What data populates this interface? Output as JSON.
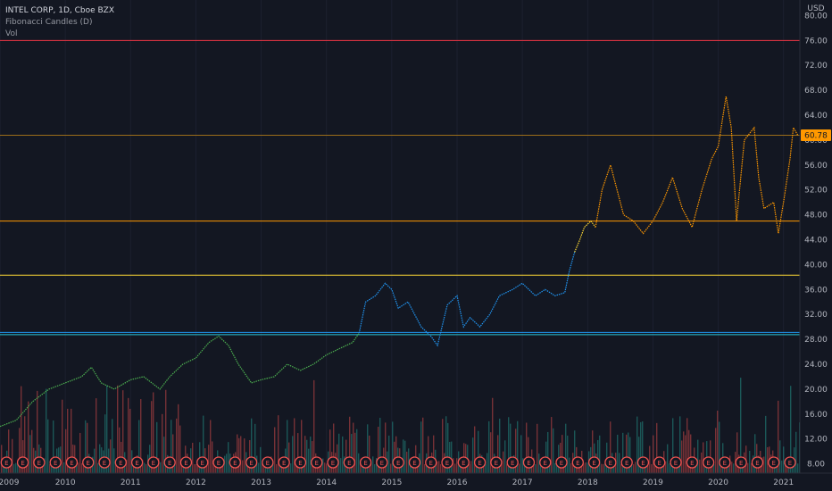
{
  "legend": {
    "symbol": "INTEL CORP, 1D, Cboe BZX",
    "indicator": "Fibonacci Candles (D)",
    "volume": "Vol"
  },
  "chart_data": {
    "type": "line",
    "currency": "USD",
    "y_ticks": [
      "80.00",
      "76.00",
      "72.00",
      "68.00",
      "64.00",
      "60.00",
      "56.00",
      "52.00",
      "48.00",
      "44.00",
      "40.00",
      "36.00",
      "32.00",
      "28.00",
      "24.00",
      "20.00",
      "16.00",
      "12.00",
      "8.00"
    ],
    "ylim": [
      6.5,
      82.5
    ],
    "last_price": "60.78",
    "x_ticks": [
      "2009",
      "2010",
      "2011",
      "2012",
      "2013",
      "2014",
      "2015",
      "2016",
      "2017",
      "2018",
      "2019",
      "2020",
      "2021"
    ],
    "xlim": [
      2009.0,
      2021.25
    ],
    "earnings_marker": "E",
    "earnings_markers": [
      2009.1,
      2009.35,
      2009.6,
      2009.85,
      2010.1,
      2010.35,
      2010.6,
      2010.85,
      2011.1,
      2011.35,
      2011.6,
      2011.85,
      2012.1,
      2012.35,
      2012.6,
      2012.85,
      2013.1,
      2013.35,
      2013.6,
      2013.85,
      2014.1,
      2014.35,
      2014.6,
      2014.85,
      2015.1,
      2015.35,
      2015.6,
      2015.85,
      2016.1,
      2016.35,
      2016.6,
      2016.85,
      2017.1,
      2017.35,
      2017.6,
      2017.85,
      2018.1,
      2018.35,
      2018.6,
      2018.85,
      2019.1,
      2019.35,
      2019.6,
      2019.85,
      2020.1,
      2020.35,
      2020.6,
      2020.85,
      2021.1
    ],
    "fib_levels": [
      {
        "price": 76.0,
        "color": "#f23645"
      },
      {
        "price": 60.78,
        "color": "#9c6e1a"
      },
      {
        "price": 47.0,
        "color": "#ff9800"
      },
      {
        "price": 38.3,
        "color": "#fdd835"
      },
      {
        "price": 29.1,
        "color": "#2196f3"
      },
      {
        "price": 28.75,
        "color": "#26c6da"
      }
    ],
    "series": [
      {
        "color": "#4caf50",
        "points": [
          [
            2009.0,
            14
          ],
          [
            2009.25,
            15
          ],
          [
            2009.5,
            18
          ],
          [
            2009.75,
            20
          ],
          [
            2010.0,
            21
          ],
          [
            2010.25,
            22
          ],
          [
            2010.4,
            23.5
          ],
          [
            2010.55,
            21
          ],
          [
            2010.75,
            20
          ],
          [
            2011.0,
            21.5
          ],
          [
            2011.2,
            22
          ],
          [
            2011.45,
            20
          ],
          [
            2011.6,
            22
          ],
          [
            2011.8,
            24
          ],
          [
            2012.0,
            25
          ],
          [
            2012.2,
            27.5
          ],
          [
            2012.35,
            28.5
          ],
          [
            2012.5,
            27
          ],
          [
            2012.65,
            24
          ],
          [
            2012.85,
            21
          ],
          [
            2013.0,
            21.5
          ],
          [
            2013.2,
            22
          ],
          [
            2013.4,
            24
          ],
          [
            2013.6,
            23
          ],
          [
            2013.8,
            24
          ],
          [
            2014.0,
            25.5
          ],
          [
            2014.2,
            26.5
          ],
          [
            2014.4,
            27.5
          ],
          [
            2014.5,
            29
          ]
        ]
      },
      {
        "color": "#2196f3",
        "points": [
          [
            2014.5,
            29
          ],
          [
            2014.6,
            34
          ],
          [
            2014.75,
            35
          ],
          [
            2014.9,
            37
          ],
          [
            2015.0,
            36
          ],
          [
            2015.1,
            33
          ],
          [
            2015.25,
            34
          ],
          [
            2015.45,
            30
          ],
          [
            2015.6,
            28.5
          ],
          [
            2015.7,
            27
          ],
          [
            2015.85,
            33.5
          ],
          [
            2016.0,
            35
          ],
          [
            2016.1,
            30
          ],
          [
            2016.2,
            31.5
          ],
          [
            2016.35,
            30
          ],
          [
            2016.5,
            32
          ],
          [
            2016.65,
            35
          ],
          [
            2016.85,
            36
          ],
          [
            2017.0,
            37
          ],
          [
            2017.2,
            35
          ],
          [
            2017.35,
            36
          ],
          [
            2017.5,
            35
          ],
          [
            2017.65,
            35.5
          ],
          [
            2017.72,
            39
          ],
          [
            2017.8,
            42
          ]
        ]
      },
      {
        "color": "#fdd835",
        "points": [
          [
            2017.8,
            42
          ],
          [
            2017.88,
            44
          ],
          [
            2017.95,
            46
          ],
          [
            2018.05,
            47
          ],
          [
            2018.12,
            46
          ]
        ]
      },
      {
        "color": "#ff9800",
        "points": [
          [
            2018.12,
            46
          ],
          [
            2018.22,
            52
          ],
          [
            2018.35,
            56
          ],
          [
            2018.45,
            52
          ],
          [
            2018.55,
            48
          ],
          [
            2018.7,
            47
          ],
          [
            2018.85,
            45
          ],
          [
            2019.0,
            47
          ],
          [
            2019.15,
            50
          ],
          [
            2019.3,
            54
          ],
          [
            2019.45,
            49
          ],
          [
            2019.6,
            46
          ],
          [
            2019.75,
            52
          ],
          [
            2019.9,
            57
          ],
          [
            2020.0,
            59
          ],
          [
            2020.12,
            67
          ],
          [
            2020.2,
            62
          ],
          [
            2020.28,
            47
          ],
          [
            2020.4,
            60
          ],
          [
            2020.55,
            62
          ],
          [
            2020.62,
            54
          ],
          [
            2020.7,
            49
          ],
          [
            2020.85,
            50
          ],
          [
            2020.92,
            45
          ],
          [
            2021.0,
            50
          ],
          [
            2021.1,
            57
          ],
          [
            2021.15,
            62
          ],
          [
            2021.22,
            60.78
          ]
        ]
      }
    ]
  }
}
